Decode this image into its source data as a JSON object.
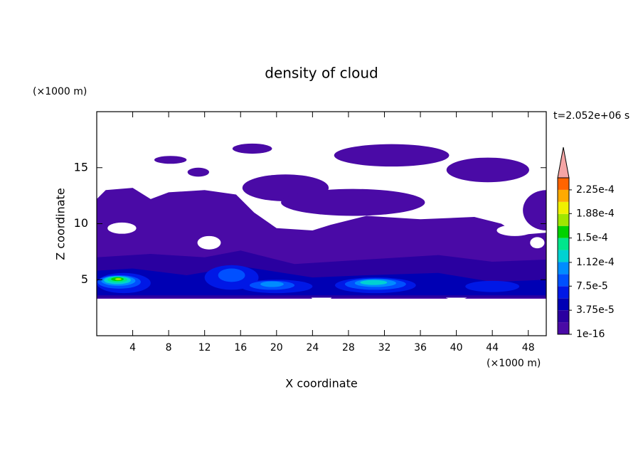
{
  "chart_data": {
    "type": "contour",
    "title": "density of cloud",
    "x_label": "X coordinate",
    "y_label": "Z coordinate",
    "x_unit": "(×1000 m)",
    "y_unit": "(×1000 m)",
    "time_label": "t=2.052e+06 s",
    "xlim": [
      0,
      50
    ],
    "ylim": [
      0,
      20
    ],
    "xticks": [
      4,
      8,
      12,
      16,
      20,
      24,
      28,
      32,
      36,
      40,
      44,
      48
    ],
    "yticks": [
      5,
      10,
      15
    ],
    "levels": [
      1e-16,
      1.875e-05,
      3.75e-05,
      5.625e-05,
      7.5e-05,
      9.375e-05,
      0.0001125,
      0.00013125,
      0.00015,
      0.00016875,
      0.0001875,
      0.00020625,
      0.000225
    ],
    "level_colors": [
      "#4a0aa6",
      "#2a00a0",
      "#0000b4",
      "#0018e6",
      "#0050ff",
      "#008cff",
      "#00d2d2",
      "#00e68c",
      "#00d200",
      "#a0e600",
      "#f0f000",
      "#ffaa00",
      "#ff6400"
    ],
    "colorbar_lim": [
      1e-16,
      0.00024375
    ],
    "colorbar_extend_color": "#f5a5a5",
    "colorbar_ticks": [
      {
        "value": 1e-16,
        "label": "1e-16"
      },
      {
        "value": 3.75e-05,
        "label": "3.75e-5"
      },
      {
        "value": 7.5e-05,
        "label": "7.5e-5"
      },
      {
        "value": 0.000112,
        "label": "1.12e-4"
      },
      {
        "value": 0.00015,
        "label": "1.5e-4"
      },
      {
        "value": 0.000188,
        "label": "1.88e-4"
      },
      {
        "value": 0.000225,
        "label": "2.25e-4"
      }
    ]
  }
}
